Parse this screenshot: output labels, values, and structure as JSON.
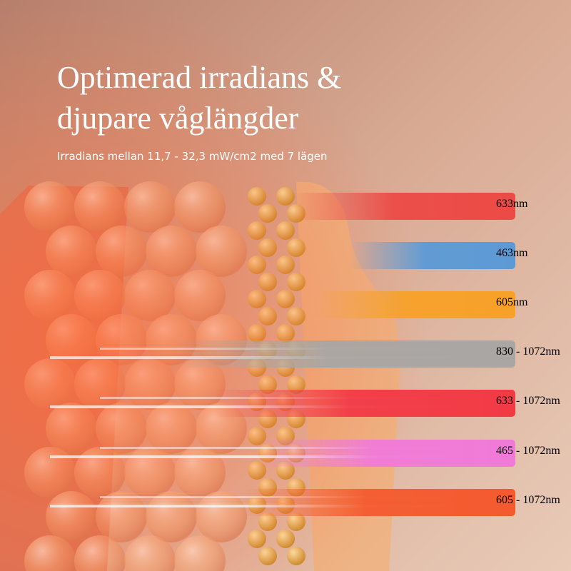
{
  "header": {
    "title_lines": [
      "Optimerad irradians &",
      "djupare våglängder"
    ],
    "subtitle": "Irradians mellan 11,7 - 32,3 mW/cm2 med 7 lägen"
  },
  "bands": [
    {
      "label": "633nm",
      "color": "#ec4a45"
    },
    {
      "label": "463nm",
      "color": "#5c9ad6"
    },
    {
      "label": "605nm",
      "color": "#f7a128"
    },
    {
      "label": "830 - 1072nm",
      "color": "#a9a6a3"
    },
    {
      "label": "633 - 1072nm",
      "color": "#f23a45"
    },
    {
      "label": "465 - 1072nm",
      "color": "#f07ad8"
    },
    {
      "label": "605 - 1072nm",
      "color": "#f45a2e"
    }
  ]
}
